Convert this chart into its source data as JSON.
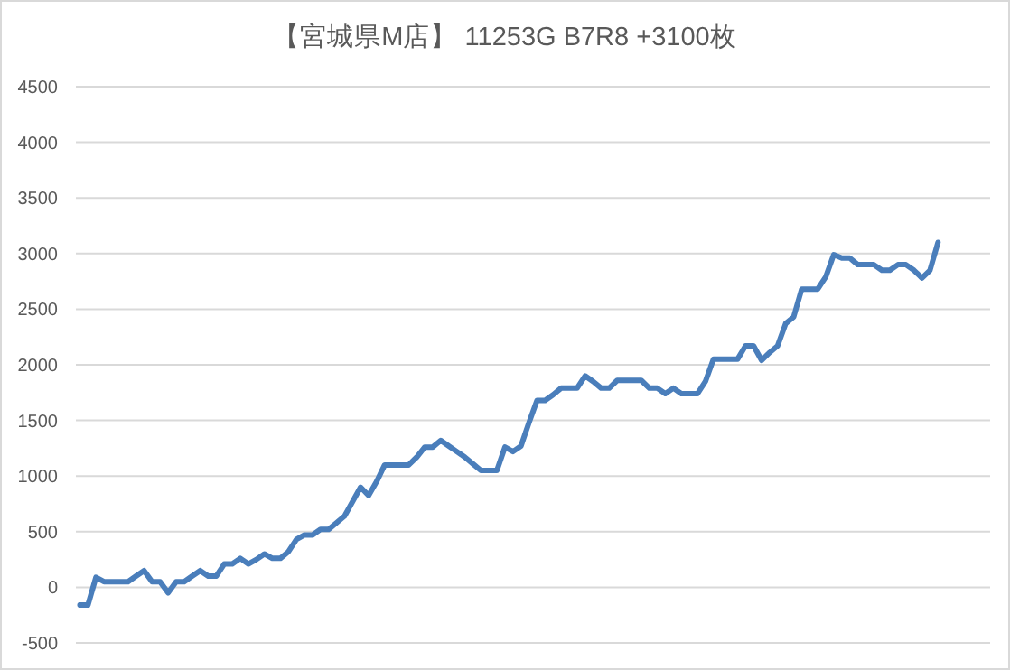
{
  "chart_data": {
    "type": "line",
    "title": "【宮城県M店】 11253G  B7R8  +3100枚",
    "categories": [
      null,
      null,
      null,
      null,
      null,
      null,
      null,
      null,
      null,
      null,
      null,
      null,
      null,
      null,
      null,
      null,
      null,
      null,
      null,
      null,
      null,
      null,
      null,
      null,
      null,
      null,
      null,
      null,
      null,
      null,
      null,
      null,
      null,
      null,
      null,
      null,
      null,
      null,
      null,
      null,
      null,
      null,
      null,
      null,
      null,
      null,
      null,
      null,
      null,
      null,
      null,
      null,
      null,
      null,
      null,
      null,
      null,
      null,
      null,
      null,
      null,
      null,
      null,
      null,
      null,
      null,
      null,
      null,
      null,
      null,
      null,
      null,
      null,
      null,
      null,
      null,
      null,
      null,
      null,
      null,
      null,
      null,
      null,
      null,
      null,
      null,
      null,
      null,
      null,
      null,
      null,
      null,
      null,
      null,
      null,
      null,
      null,
      null,
      null,
      null,
      null,
      null,
      null,
      null,
      null,
      null,
      null,
      null,
      null,
      null,
      null,
      null,
      null,
      null
    ],
    "series": [
      {
        "color": "#4a7ebb",
        "values": [
          -160,
          -160,
          90,
          50,
          50,
          50,
          50,
          100,
          150,
          50,
          50,
          -50,
          50,
          50,
          100,
          150,
          100,
          100,
          210,
          210,
          260,
          210,
          250,
          300,
          260,
          260,
          320,
          430,
          470,
          470,
          520,
          520,
          580,
          640,
          770,
          900,
          825,
          950,
          1100,
          1100,
          1100,
          1100,
          1170,
          1260,
          1260,
          1320,
          1270,
          1220,
          1170,
          1110,
          1050,
          1050,
          1050,
          1260,
          1220,
          1270,
          1480,
          1680,
          1680,
          1730,
          1790,
          1790,
          1790,
          1900,
          1850,
          1790,
          1790,
          1860,
          1860,
          1860,
          1860,
          1790,
          1790,
          1740,
          1790,
          1740,
          1740,
          1740,
          1850,
          2050,
          2050,
          2050,
          2050,
          2170,
          2170,
          2040,
          2110,
          2170,
          2370,
          2430,
          2680,
          2680,
          2680,
          2790,
          2990,
          2960,
          2960,
          2900,
          2900,
          2900,
          2850,
          2850,
          2900,
          2900,
          2850,
          2780,
          2850,
          3100,
          null,
          null,
          null,
          null,
          null,
          null
        ]
      }
    ],
    "ylim": [
      -500,
      4500
    ],
    "yticks": [
      -500,
      0,
      500,
      1000,
      1500,
      2000,
      2500,
      3000,
      3500,
      4000,
      4500
    ],
    "grid": "y",
    "tick_labels": "y"
  }
}
